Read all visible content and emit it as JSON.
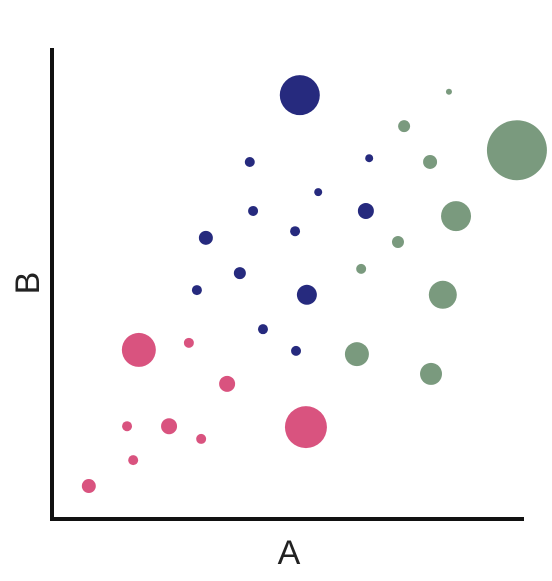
{
  "chart_data": {
    "type": "scatter",
    "x_label": "A",
    "y_label": "B",
    "xlim": [
      0,
      100
    ],
    "ylim": [
      0,
      100
    ],
    "series": [
      {
        "color": "#d9537f",
        "x": [
          18.4,
          29.0,
          37.1,
          15.9,
          24.8,
          31.6,
          17.2,
          7.8,
          53.8
        ],
        "values": [
          35.9,
          37.4,
          28.7,
          19.7,
          19.7,
          17.0,
          12.5,
          7.0,
          19.5
        ],
        "sizes": [
          17,
          5,
          8,
          5,
          8,
          5,
          5,
          7,
          21
        ]
      },
      {
        "color": "#262a7e",
        "x": [
          52.5,
          41.9,
          67.2,
          56.4,
          42.6,
          66.5,
          32.6,
          51.5,
          39.8,
          30.7,
          54.0,
          44.7,
          51.7
        ],
        "values": [
          90.0,
          75.8,
          76.6,
          69.4,
          65.4,
          65.4,
          59.7,
          61.1,
          52.2,
          48.6,
          47.6,
          40.3,
          35.7
        ],
        "sizes": [
          20,
          5,
          4,
          4,
          5,
          8,
          7,
          5,
          6,
          5,
          10,
          5,
          5
        ]
      },
      {
        "color": "#7a9a7e",
        "x": [
          84.1,
          74.6,
          80.1,
          98.5,
          85.6,
          73.3,
          65.5,
          82.8,
          64.6,
          80.3
        ],
        "values": [
          90.7,
          83.4,
          75.8,
          78.3,
          64.3,
          58.8,
          53.1,
          47.6,
          35.0,
          30.8
        ],
        "sizes": [
          3,
          6,
          7,
          30,
          15,
          6,
          5,
          14,
          12,
          11
        ]
      }
    ]
  }
}
